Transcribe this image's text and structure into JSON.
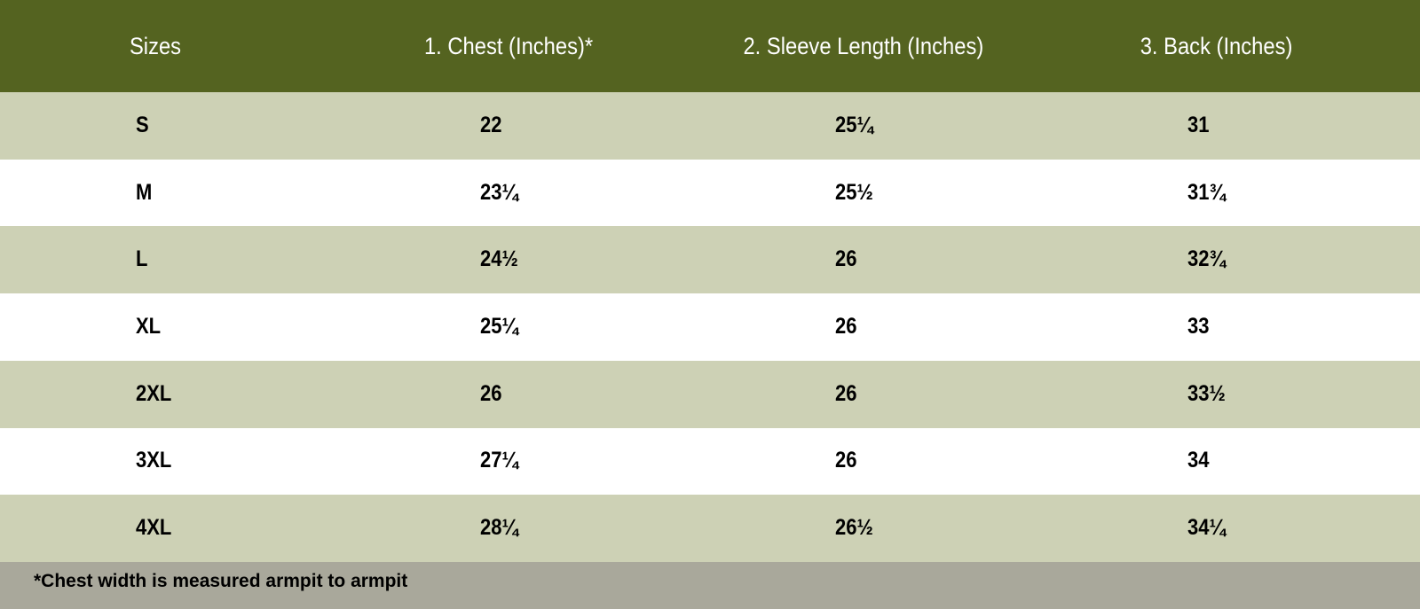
{
  "table": {
    "headers": [
      "Sizes",
      "1. Chest (Inches)*",
      "2. Sleeve Length (Inches)",
      "3. Back (Inches)"
    ],
    "rows": [
      [
        "S",
        "22",
        "25¼",
        "31"
      ],
      [
        "M",
        "23¼",
        "25½",
        "31¾"
      ],
      [
        "L",
        "24½",
        "26",
        "32¾"
      ],
      [
        "XL",
        "25¼",
        "26",
        "33"
      ],
      [
        "2XL",
        "26",
        "26",
        "33½"
      ],
      [
        "3XL",
        "27¼",
        "26",
        "34"
      ],
      [
        "4XL",
        "28¼",
        "26½",
        "34¼"
      ]
    ]
  },
  "footnote": "*Chest width is measured armpit to armpit"
}
